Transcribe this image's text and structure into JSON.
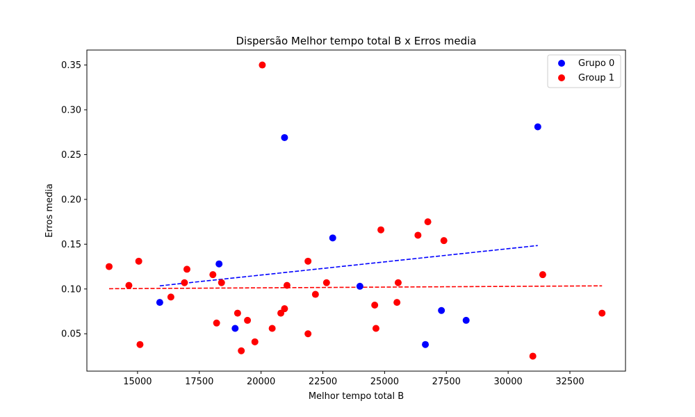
{
  "chart_data": {
    "type": "scatter",
    "title": "Dispersão Melhor tempo total B x Erros media",
    "xlabel": "Melhor tempo total B",
    "ylabel": "Erros media",
    "xlim": [
      12950,
      34750
    ],
    "ylim": [
      0.0083,
      0.3667
    ],
    "xticks": [
      15000,
      17500,
      20000,
      22500,
      25000,
      27500,
      30000,
      32500
    ],
    "yticks": [
      0.05,
      0.1,
      0.15,
      0.2,
      0.25,
      0.3,
      0.35
    ],
    "xtick_labels": [
      "15000",
      "17500",
      "20000",
      "22500",
      "25000",
      "27500",
      "30000",
      "32500"
    ],
    "ytick_labels": [
      "0.05",
      "0.10",
      "0.15",
      "0.20",
      "0.25",
      "0.30",
      "0.35"
    ],
    "grid": false,
    "legend_position": "top-right",
    "series": [
      {
        "name": "Grupo 0",
        "color": "#0000ff",
        "points": [
          [
            15900,
            0.085
          ],
          [
            18300,
            0.128
          ],
          [
            18950,
            0.056
          ],
          [
            20950,
            0.269
          ],
          [
            22900,
            0.157
          ],
          [
            24000,
            0.103
          ],
          [
            26650,
            0.038
          ],
          [
            27300,
            0.076
          ],
          [
            28300,
            0.065
          ],
          [
            31200,
            0.281
          ]
        ],
        "trendline": {
          "x": [
            15900,
            31200
          ],
          "y": [
            0.1035,
            0.1485
          ],
          "style": "dashed"
        }
      },
      {
        "name": "Group 1",
        "color": "#ff0000",
        "points": [
          [
            13850,
            0.125
          ],
          [
            14650,
            0.104
          ],
          [
            15050,
            0.131
          ],
          [
            15100,
            0.038
          ],
          [
            16350,
            0.091
          ],
          [
            16900,
            0.107
          ],
          [
            17000,
            0.122
          ],
          [
            18050,
            0.116
          ],
          [
            18200,
            0.062
          ],
          [
            18400,
            0.107
          ],
          [
            19050,
            0.073
          ],
          [
            19200,
            0.031
          ],
          [
            19450,
            0.065
          ],
          [
            19750,
            0.041
          ],
          [
            20050,
            0.35
          ],
          [
            20450,
            0.056
          ],
          [
            20800,
            0.073
          ],
          [
            20950,
            0.078
          ],
          [
            21050,
            0.104
          ],
          [
            21900,
            0.05
          ],
          [
            21900,
            0.131
          ],
          [
            22200,
            0.094
          ],
          [
            22650,
            0.107
          ],
          [
            24600,
            0.082
          ],
          [
            24650,
            0.056
          ],
          [
            24850,
            0.166
          ],
          [
            25500,
            0.085
          ],
          [
            25550,
            0.107
          ],
          [
            26350,
            0.16
          ],
          [
            26750,
            0.175
          ],
          [
            27400,
            0.154
          ],
          [
            31000,
            0.025
          ],
          [
            31400,
            0.116
          ],
          [
            33800,
            0.073
          ]
        ],
        "trendline": {
          "x": [
            13850,
            33800
          ],
          "y": [
            0.1003,
            0.1035
          ],
          "style": "dashed"
        }
      }
    ]
  }
}
